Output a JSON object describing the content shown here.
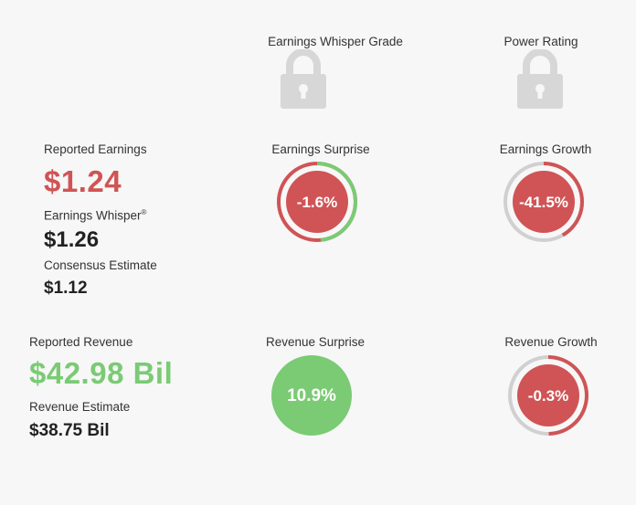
{
  "grades": {
    "whisper_grade_label": "Earnings Whisper Grade",
    "power_rating_label": "Power Rating"
  },
  "earnings": {
    "reported_label": "Reported Earnings",
    "reported_value": "$1.24",
    "whisper_label": "Earnings Whisper",
    "whisper_mark": "®",
    "whisper_value": "$1.26",
    "consensus_label": "Consensus Estimate",
    "consensus_value": "$1.12",
    "surprise_label": "Earnings Surprise",
    "surprise_value": "-1.6%",
    "surprise_fraction": 0.016,
    "growth_label": "Earnings Growth",
    "growth_value": "-41.5%",
    "growth_fraction": 0.415
  },
  "revenue": {
    "reported_label": "Reported Revenue",
    "reported_value": "$42.98 Bil",
    "estimate_label": "Revenue Estimate",
    "estimate_value": "$38.75 Bil",
    "surprise_label": "Revenue Surprise",
    "surprise_value": "10.9%",
    "growth_label": "Revenue Growth",
    "growth_value": "-0.3%",
    "growth_fraction": 0.003
  },
  "colors": {
    "red": "#d05455",
    "green": "#7acb74",
    "gray_ring": "#d0d0d0",
    "lock": "#d7d7d7"
  },
  "icons": [
    "lock-icon",
    "lock-icon"
  ]
}
